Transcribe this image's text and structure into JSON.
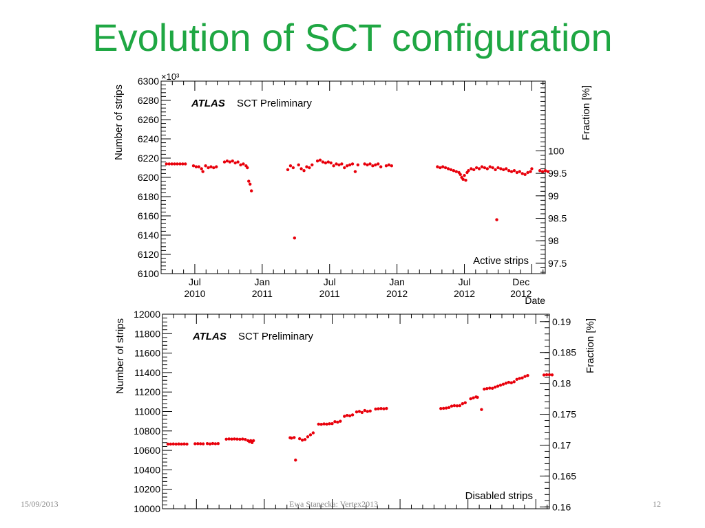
{
  "slide": {
    "title": "Evolution of SCT configuration",
    "footer_date": "15/09/2013",
    "footer_author": "Ewa Stanecka: Vertex2013",
    "page_number": "12"
  },
  "colors": {
    "title": "#1fa743",
    "marker": "#e8000b"
  },
  "chart_data": [
    {
      "type": "scatter",
      "atlas_label": "ATLAS",
      "label": "SCT Preliminary",
      "panel_label": "Active strips",
      "ylabel": "Number of strips",
      "y2label": "Fraction [%]",
      "xlabel": "Date",
      "y_multiplier": "×10³",
      "ylim": [
        6100,
        6300
      ],
      "y_ticks": [
        6100,
        6120,
        6140,
        6160,
        6180,
        6200,
        6220,
        6240,
        6260,
        6280,
        6300
      ],
      "y2lim": [
        97.27,
        101.55
      ],
      "y2_ticks": [
        97.5,
        98,
        98.5,
        99,
        99.5,
        100
      ],
      "y2_tick_labels": [
        "97.5",
        "98",
        "98.5",
        "99",
        "99.5",
        "100"
      ],
      "xlim": [
        2010.25,
        2013.1
      ],
      "x_ticks": [
        {
          "x": 2010.5,
          "label": "Jul\n2010"
        },
        {
          "x": 2011.0,
          "label": "Jan\n2011"
        },
        {
          "x": 2011.5,
          "label": "Jul\n2011"
        },
        {
          "x": 2012.0,
          "label": "Jan\n2012"
        },
        {
          "x": 2012.5,
          "label": "Jul\n2012"
        },
        {
          "x": 2012.92,
          "label": "Dec\n2012"
        }
      ],
      "series": [
        {
          "points": [
            [
              2010.29,
              6214
            ],
            [
              2010.31,
              6214
            ],
            [
              2010.33,
              6214
            ],
            [
              2010.35,
              6214
            ],
            [
              2010.37,
              6214
            ],
            [
              2010.39,
              6214
            ],
            [
              2010.41,
              6214
            ],
            [
              2010.43,
              6214
            ],
            [
              2010.49,
              6212
            ],
            [
              2010.51,
              6211
            ],
            [
              2010.53,
              6211
            ],
            [
              2010.55,
              6209
            ],
            [
              2010.56,
              6206
            ],
            [
              2010.58,
              6212
            ],
            [
              2010.6,
              6210
            ],
            [
              2010.62,
              6211
            ],
            [
              2010.64,
              6210
            ],
            [
              2010.66,
              6211
            ],
            [
              2010.72,
              6216
            ],
            [
              2010.74,
              6217
            ],
            [
              2010.76,
              6216
            ],
            [
              2010.78,
              6217
            ],
            [
              2010.8,
              6215
            ],
            [
              2010.82,
              6216
            ],
            [
              2010.84,
              6213
            ],
            [
              2010.86,
              6214
            ],
            [
              2010.88,
              6212
            ],
            [
              2010.89,
              6210
            ],
            [
              2010.9,
              6196
            ],
            [
              2010.91,
              6193
            ],
            [
              2010.92,
              6186
            ],
            [
              2011.19,
              6208
            ],
            [
              2011.21,
              6212
            ],
            [
              2011.23,
              6210
            ],
            [
              2011.24,
              6137
            ],
            [
              2011.27,
              6213
            ],
            [
              2011.29,
              6209
            ],
            [
              2011.31,
              6207
            ],
            [
              2011.33,
              6211
            ],
            [
              2011.35,
              6210
            ],
            [
              2011.37,
              6213
            ],
            [
              2011.41,
              6217
            ],
            [
              2011.43,
              6218
            ],
            [
              2011.45,
              6216
            ],
            [
              2011.47,
              6215
            ],
            [
              2011.49,
              6216
            ],
            [
              2011.51,
              6215
            ],
            [
              2011.53,
              6212
            ],
            [
              2011.55,
              6214
            ],
            [
              2011.57,
              6213
            ],
            [
              2011.59,
              6214
            ],
            [
              2011.61,
              6210
            ],
            [
              2011.63,
              6212
            ],
            [
              2011.65,
              6213
            ],
            [
              2011.67,
              6214
            ],
            [
              2011.69,
              6206
            ],
            [
              2011.71,
              6213
            ],
            [
              2011.76,
              6214
            ],
            [
              2011.78,
              6213
            ],
            [
              2011.8,
              6214
            ],
            [
              2011.82,
              6212
            ],
            [
              2011.84,
              6213
            ],
            [
              2011.86,
              6214
            ],
            [
              2011.88,
              6211
            ],
            [
              2011.92,
              6212
            ],
            [
              2011.94,
              6213
            ],
            [
              2011.96,
              6212
            ],
            [
              2012.3,
              6211
            ],
            [
              2012.32,
              6210
            ],
            [
              2012.34,
              6211
            ],
            [
              2012.36,
              6210
            ],
            [
              2012.38,
              6209
            ],
            [
              2012.4,
              6208
            ],
            [
              2012.42,
              6207
            ],
            [
              2012.44,
              6206
            ],
            [
              2012.46,
              6205
            ],
            [
              2012.47,
              6203
            ],
            [
              2012.48,
              6200
            ],
            [
              2012.49,
              6198
            ],
            [
              2012.5,
              6202
            ],
            [
              2012.51,
              6197
            ],
            [
              2012.52,
              6205
            ],
            [
              2012.53,
              6207
            ],
            [
              2012.55,
              6209
            ],
            [
              2012.57,
              6208
            ],
            [
              2012.59,
              6210
            ],
            [
              2012.61,
              6209
            ],
            [
              2012.63,
              6211
            ],
            [
              2012.65,
              6210
            ],
            [
              2012.67,
              6209
            ],
            [
              2012.69,
              6211
            ],
            [
              2012.71,
              6210
            ],
            [
              2012.73,
              6208
            ],
            [
              2012.74,
              6156
            ],
            [
              2012.75,
              6210
            ],
            [
              2012.77,
              6209
            ],
            [
              2012.79,
              6208
            ],
            [
              2012.81,
              6209
            ],
            [
              2012.83,
              6207
            ],
            [
              2012.85,
              6206
            ],
            [
              2012.87,
              6207
            ],
            [
              2012.89,
              6205
            ],
            [
              2012.91,
              6206
            ],
            [
              2012.93,
              6204
            ],
            [
              2012.95,
              6203
            ],
            [
              2012.97,
              6205
            ],
            [
              2012.99,
              6206
            ],
            [
              2013.0,
              6209
            ],
            [
              2013.06,
              6207
            ],
            [
              2013.08,
              6206
            ],
            [
              2013.1,
              6207
            ],
            [
              2013.12,
              6206
            ]
          ]
        }
      ]
    },
    {
      "type": "scatter",
      "atlas_label": "ATLAS",
      "label": "SCT Preliminary",
      "panel_label": "Disabled strips",
      "ylabel": "Number of strips",
      "y2label": "Fraction [%]",
      "ylim": [
        10000,
        12000
      ],
      "y_ticks": [
        10000,
        10200,
        10400,
        10600,
        10800,
        11000,
        11200,
        11400,
        11600,
        11800,
        12000
      ],
      "y2lim": [
        0.1597,
        0.1912
      ],
      "y2_ticks": [
        0.16,
        0.165,
        0.17,
        0.175,
        0.18,
        0.185,
        0.19
      ],
      "y2_tick_labels": [
        "0.16",
        "0.165",
        "0.17",
        "0.175",
        "0.18",
        "0.185",
        "0.19"
      ],
      "xlim": [
        2010.25,
        2013.1
      ],
      "series": [
        {
          "points": [
            [
              2010.29,
              10665
            ],
            [
              2010.31,
              10665
            ],
            [
              2010.33,
              10666
            ],
            [
              2010.35,
              10665
            ],
            [
              2010.37,
              10666
            ],
            [
              2010.39,
              10665
            ],
            [
              2010.41,
              10666
            ],
            [
              2010.43,
              10665
            ],
            [
              2010.49,
              10668
            ],
            [
              2010.51,
              10669
            ],
            [
              2010.53,
              10668
            ],
            [
              2010.55,
              10667
            ],
            [
              2010.58,
              10670
            ],
            [
              2010.6,
              10666
            ],
            [
              2010.62,
              10671
            ],
            [
              2010.64,
              10668
            ],
            [
              2010.66,
              10670
            ],
            [
              2010.72,
              10715
            ],
            [
              2010.74,
              10718
            ],
            [
              2010.76,
              10716
            ],
            [
              2010.78,
              10718
            ],
            [
              2010.8,
              10716
            ],
            [
              2010.82,
              10714
            ],
            [
              2010.84,
              10717
            ],
            [
              2010.86,
              10712
            ],
            [
              2010.88,
              10700
            ],
            [
              2010.89,
              10690
            ],
            [
              2010.9,
              10700
            ],
            [
              2010.91,
              10680
            ],
            [
              2010.92,
              10700
            ],
            [
              2011.19,
              10730
            ],
            [
              2011.2,
              10726
            ],
            [
              2011.22,
              10732
            ],
            [
              2011.23,
              10500
            ],
            [
              2011.26,
              10720
            ],
            [
              2011.28,
              10705
            ],
            [
              2011.3,
              10712
            ],
            [
              2011.32,
              10740
            ],
            [
              2011.34,
              10760
            ],
            [
              2011.36,
              10780
            ],
            [
              2011.4,
              10870
            ],
            [
              2011.42,
              10868
            ],
            [
              2011.44,
              10872
            ],
            [
              2011.46,
              10870
            ],
            [
              2011.48,
              10874
            ],
            [
              2011.5,
              10875
            ],
            [
              2011.52,
              10895
            ],
            [
              2011.54,
              10890
            ],
            [
              2011.56,
              10900
            ],
            [
              2011.59,
              10950
            ],
            [
              2011.61,
              10960
            ],
            [
              2011.63,
              10955
            ],
            [
              2011.65,
              10965
            ],
            [
              2011.68,
              10995
            ],
            [
              2011.7,
              11000
            ],
            [
              2011.72,
              10990
            ],
            [
              2011.74,
              11010
            ],
            [
              2011.76,
              11000
            ],
            [
              2011.78,
              11005
            ],
            [
              2011.82,
              11025
            ],
            [
              2011.84,
              11028
            ],
            [
              2011.86,
              11030
            ],
            [
              2011.88,
              11028
            ],
            [
              2011.9,
              11031
            ],
            [
              2012.3,
              11030
            ],
            [
              2012.32,
              11032
            ],
            [
              2012.34,
              11035
            ],
            [
              2012.36,
              11040
            ],
            [
              2012.38,
              11055
            ],
            [
              2012.4,
              11060
            ],
            [
              2012.42,
              11058
            ],
            [
              2012.44,
              11060
            ],
            [
              2012.46,
              11080
            ],
            [
              2012.48,
              11090
            ],
            [
              2012.52,
              11130
            ],
            [
              2012.54,
              11140
            ],
            [
              2012.56,
              11150
            ],
            [
              2012.57,
              11145
            ],
            [
              2012.6,
              11020
            ],
            [
              2012.62,
              11230
            ],
            [
              2012.64,
              11235
            ],
            [
              2012.66,
              11240
            ],
            [
              2012.68,
              11238
            ],
            [
              2012.7,
              11250
            ],
            [
              2012.72,
              11260
            ],
            [
              2012.74,
              11270
            ],
            [
              2012.76,
              11280
            ],
            [
              2012.78,
              11290
            ],
            [
              2012.8,
              11300
            ],
            [
              2012.82,
              11295
            ],
            [
              2012.84,
              11305
            ],
            [
              2012.86,
              11330
            ],
            [
              2012.88,
              11340
            ],
            [
              2012.9,
              11345
            ],
            [
              2012.92,
              11360
            ],
            [
              2012.94,
              11370
            ],
            [
              2013.06,
              11375
            ],
            [
              2013.08,
              11378
            ],
            [
              2013.1,
              11378
            ],
            [
              2013.12,
              11376
            ]
          ]
        }
      ]
    }
  ]
}
